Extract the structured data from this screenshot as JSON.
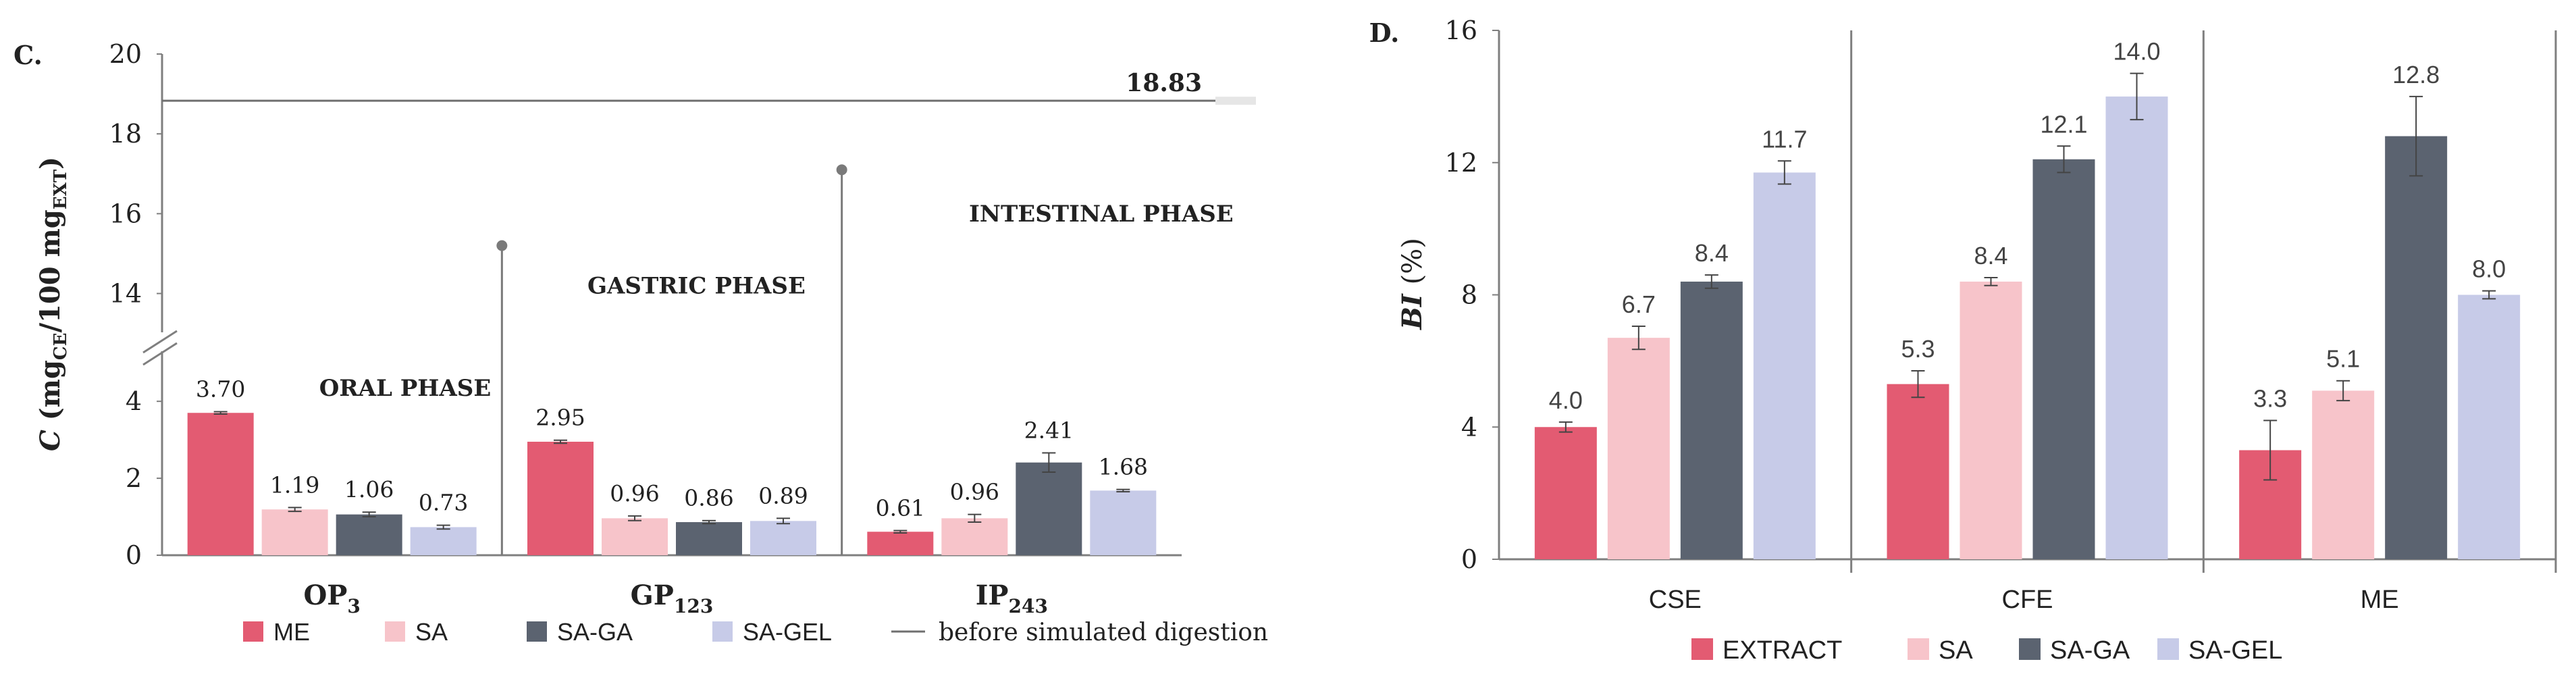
{
  "colors": {
    "red": "#E35B72",
    "pink": "#F7C4CA",
    "dark": "#5B6370",
    "lavender": "#C7CBE8",
    "axis": "#7F7F7F",
    "text": "#222222"
  },
  "chart_data": [
    {
      "panel_label": "C.",
      "type": "bar",
      "ylabel_parts": {
        "c": "C",
        "mg1": "(mg",
        "sub1": "CE",
        "mid": "/100 mg",
        "sub2": "EXT",
        "close": ")"
      },
      "lower_ticks": [
        0,
        2,
        4
      ],
      "upper_ticks": [
        14,
        16,
        18,
        20
      ],
      "ylim_lower": [
        0,
        4.6
      ],
      "ylim_upper": [
        13.4,
        20
      ],
      "categories": [
        {
          "name": "OP",
          "sub": "3"
        },
        {
          "name": "GP",
          "sub": "123"
        },
        {
          "name": "IP",
          "sub": "243"
        }
      ],
      "series": [
        {
          "name": "ME",
          "color": "#E35B72",
          "values": [
            3.7,
            2.95,
            0.61
          ],
          "errors": [
            0.03,
            0.04,
            0.03
          ],
          "labels": [
            "3.70",
            "2.95",
            "0.61"
          ]
        },
        {
          "name": "SA",
          "color": "#F7C4CA",
          "values": [
            1.19,
            0.96,
            0.96
          ],
          "errors": [
            0.05,
            0.06,
            0.1
          ],
          "labels": [
            "1.19",
            "0.96",
            "0.96"
          ]
        },
        {
          "name": "SA-GA",
          "color": "#5B6370",
          "values": [
            1.06,
            0.86,
            2.41
          ],
          "errors": [
            0.06,
            0.04,
            0.25
          ],
          "labels": [
            "1.06",
            "0.86",
            "2.41"
          ]
        },
        {
          "name": "SA-GEL",
          "color": "#C7CBE8",
          "values": [
            0.73,
            0.89,
            1.68
          ],
          "errors": [
            0.05,
            0.07,
            0.03
          ],
          "labels": [
            "0.73",
            "0.89",
            "1.68"
          ]
        }
      ],
      "reference_line": {
        "value": 18.83,
        "label": "18.83",
        "legend": "before simulated digestion"
      },
      "phase_labels": [
        {
          "text": "ORAL PHASE",
          "y": 4.0
        },
        {
          "text": "GASTRIC PHASE",
          "y": 14.0
        },
        {
          "text": "INTESTINAL PHASE",
          "y": 15.8
        }
      ],
      "phase_markers": [
        {
          "after_group": 0,
          "top_value": 15.2
        },
        {
          "after_group": 1,
          "top_value": 17.1
        }
      ]
    },
    {
      "panel_label": "D.",
      "type": "bar",
      "ylabel": "BI",
      "ylabel_unit": "(%)",
      "yticks": [
        0,
        4,
        8,
        12,
        16
      ],
      "ylim": [
        0,
        16
      ],
      "categories": [
        "CSE",
        "CFE",
        "ME"
      ],
      "series": [
        {
          "name": "EXTRACT",
          "color": "#E35B72",
          "values": [
            4.0,
            5.3,
            3.3
          ],
          "errors": [
            0.15,
            0.4,
            0.9
          ],
          "labels": [
            "4.0",
            "5.3",
            "3.3"
          ]
        },
        {
          "name": "SA",
          "color": "#F7C4CA",
          "values": [
            6.7,
            8.4,
            5.1
          ],
          "errors": [
            0.35,
            0.12,
            0.3
          ],
          "labels": [
            "6.7",
            "8.4",
            "5.1"
          ]
        },
        {
          "name": "SA-GA",
          "color": "#5B6370",
          "values": [
            8.4,
            12.1,
            12.8
          ],
          "errors": [
            0.2,
            0.4,
            1.2
          ],
          "labels": [
            "8.4",
            "12.1",
            "12.8"
          ]
        },
        {
          "name": "SA-GEL",
          "color": "#C7CBE8",
          "values": [
            11.7,
            14.0,
            8.0
          ],
          "errors": [
            0.35,
            0.7,
            0.12
          ],
          "labels": [
            "11.7",
            "14.0",
            "8.0"
          ]
        }
      ]
    }
  ]
}
